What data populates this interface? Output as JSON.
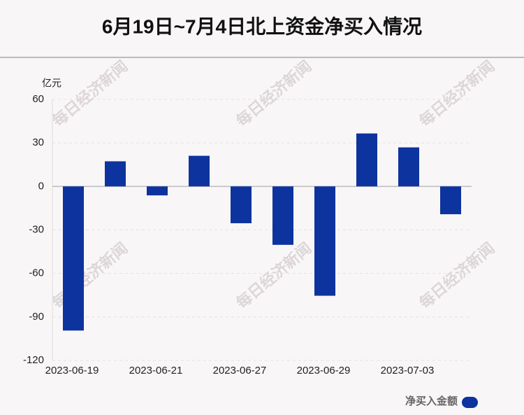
{
  "chart_data": {
    "type": "bar",
    "title": "6月19日~7月4日北上资金净买入情况",
    "y_unit": "亿元",
    "watermark": "每日经济新闻",
    "categories": [
      "2023-06-19",
      null,
      "2023-06-21",
      null,
      "2023-06-27",
      null,
      "2023-06-29",
      null,
      "2023-07-03",
      null
    ],
    "series": [
      {
        "name": "净买入金额",
        "color": "#0d339e",
        "values": [
          -99.4,
          17.3,
          -6.2,
          21.1,
          -25.4,
          -40.3,
          -75.4,
          36.5,
          26.9,
          -19.2
        ]
      }
    ],
    "ylim": [
      -120,
      60
    ],
    "yticks": [
      -120,
      -90,
      -60,
      -30,
      0,
      30,
      60
    ],
    "grid": true
  }
}
